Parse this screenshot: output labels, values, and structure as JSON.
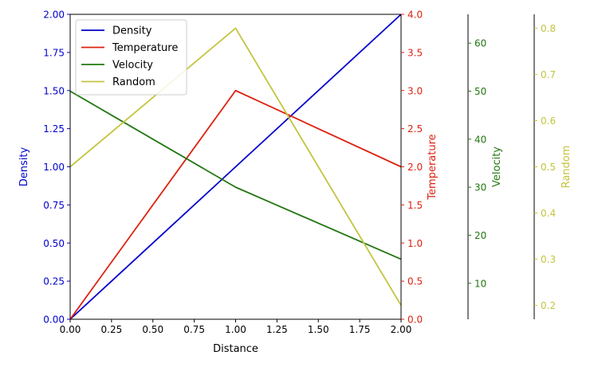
{
  "chart_data": {
    "type": "line",
    "x": [
      0,
      1,
      2
    ],
    "xlabel": "Distance",
    "xlim": [
      0,
      2
    ],
    "xticks": [
      "0.00",
      "0.25",
      "0.50",
      "0.75",
      "1.00",
      "1.25",
      "1.50",
      "1.75",
      "2.00"
    ],
    "legend_position": "top-left",
    "grid": false,
    "series": [
      {
        "name": "Density",
        "values": [
          0,
          1,
          2
        ],
        "color": "#0000cc",
        "axis": "density"
      },
      {
        "name": "Temperature",
        "values": [
          0,
          3,
          2
        ],
        "color": "#dd2211",
        "axis": "temperature"
      },
      {
        "name": "Velocity",
        "values": [
          50,
          30,
          15
        ],
        "color": "#227711",
        "axis": "velocity"
      },
      {
        "name": "Random",
        "values": [
          0.5,
          0.8,
          0.2
        ],
        "color": "#c4c440",
        "axis": "random"
      }
    ],
    "axes": [
      {
        "id": "density",
        "label": "Density",
        "color": "#0000cc",
        "ylim": [
          0,
          2
        ],
        "ticks": [
          0,
          0.25,
          0.5,
          0.75,
          1,
          1.25,
          1.5,
          1.75,
          2
        ],
        "tick_labels": [
          "0.00",
          "0.25",
          "0.50",
          "0.75",
          "1.00",
          "1.25",
          "1.50",
          "1.75",
          "2.00"
        ]
      },
      {
        "id": "temperature",
        "label": "Temperature",
        "color": "#dd2211",
        "ylim": [
          0,
          4
        ],
        "ticks": [
          0,
          0.5,
          1,
          1.5,
          2,
          2.5,
          3,
          3.5,
          4
        ],
        "tick_labels": [
          "0.0",
          "0.5",
          "1.0",
          "1.5",
          "2.0",
          "2.5",
          "3.0",
          "3.5",
          "4.0"
        ]
      },
      {
        "id": "velocity",
        "label": "Velocity",
        "color": "#227711",
        "ylim": [
          2.5,
          66
        ],
        "ticks": [
          10,
          20,
          30,
          40,
          50,
          60
        ],
        "tick_labels": [
          "10",
          "20",
          "30",
          "40",
          "50",
          "60"
        ]
      },
      {
        "id": "random",
        "label": "Random",
        "color": "#c4c440",
        "ylim": [
          0.17,
          0.83
        ],
        "ticks": [
          0.2,
          0.3,
          0.4,
          0.5,
          0.6,
          0.7,
          0.8
        ],
        "tick_labels": [
          "0.2",
          "0.3",
          "0.4",
          "0.5",
          "0.6",
          "0.7",
          "0.8"
        ]
      }
    ]
  }
}
